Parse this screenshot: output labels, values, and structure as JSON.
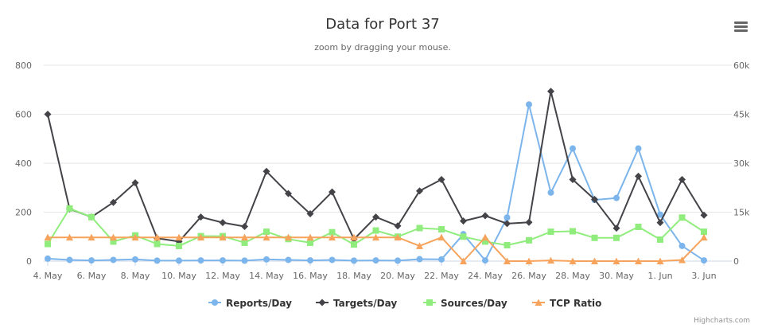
{
  "chart_data": {
    "type": "line",
    "title": "Data for Port 37",
    "subtitle": "zoom by dragging your mouse.",
    "x_tick_labels": [
      "4. May",
      "6. May",
      "8. May",
      "10. May",
      "12. May",
      "14. May",
      "16. May",
      "18. May",
      "20. May",
      "22. May",
      "24. May",
      "26. May",
      "28. May",
      "30. May",
      "1. Jun",
      "3. Jun"
    ],
    "x": [
      "4. May",
      "5. May",
      "6. May",
      "7. May",
      "8. May",
      "9. May",
      "10. May",
      "11. May",
      "12. May",
      "13. May",
      "14. May",
      "15. May",
      "16. May",
      "17. May",
      "18. May",
      "19. May",
      "20. May",
      "21. May",
      "22. May",
      "23. May",
      "24. May",
      "25. May",
      "26. May",
      "27. May",
      "28. May",
      "29. May",
      "30. May",
      "31. May",
      "1. Jun",
      "2. Jun",
      "3. Jun"
    ],
    "y_left": {
      "min": 0,
      "max": 800,
      "ticks": [
        "0",
        "200",
        "400",
        "600",
        "800"
      ]
    },
    "y_right": {
      "min": 0,
      "max": 60000,
      "ticks": [
        "0",
        "15k",
        "30k",
        "45k",
        "60k"
      ]
    },
    "grid": true,
    "legend_position": "bottom",
    "series": [
      {
        "name": "Reports/Day",
        "color": "#7cb5ec",
        "marker": "circle",
        "axis": "left",
        "values": [
          10,
          5,
          3,
          5,
          7,
          2,
          2,
          3,
          3,
          2,
          7,
          5,
          3,
          5,
          2,
          3,
          2,
          8,
          7,
          110,
          3,
          178,
          640,
          280,
          460,
          250,
          258,
          460,
          190,
          62,
          3
        ]
      },
      {
        "name": "Targets/Day",
        "color": "#434348",
        "marker": "diamond",
        "axis": "right",
        "values": [
          45000,
          16000,
          13500,
          18000,
          24000,
          7000,
          6000,
          13500,
          11800,
          10600,
          27500,
          20700,
          14500,
          21200,
          6700,
          13500,
          10800,
          21500,
          25000,
          12300,
          13900,
          11500,
          11900,
          52000,
          25000,
          18900,
          10100,
          26000,
          11800,
          25000,
          14100
        ]
      },
      {
        "name": "Sources/Day",
        "color": "#90ed7d",
        "marker": "square",
        "axis": "left",
        "values": [
          70,
          215,
          180,
          80,
          105,
          70,
          62,
          102,
          102,
          75,
          120,
          90,
          75,
          118,
          68,
          125,
          100,
          135,
          130,
          100,
          80,
          65,
          85,
          120,
          122,
          95,
          95,
          140,
          88,
          178,
          120
        ]
      },
      {
        "name": "TCP Ratio",
        "color": "#f7a35c",
        "marker": "triangle",
        "axis": "left",
        "values": [
          97,
          97,
          97,
          97,
          97,
          97,
          97,
          97,
          97,
          97,
          97,
          97,
          97,
          97,
          97,
          97,
          97,
          62,
          97,
          0,
          97,
          0,
          0,
          3,
          0,
          0,
          0,
          0,
          0,
          5,
          97
        ]
      }
    ]
  },
  "credits": "Highcharts.com",
  "menu_icon": "hamburger-menu-icon"
}
